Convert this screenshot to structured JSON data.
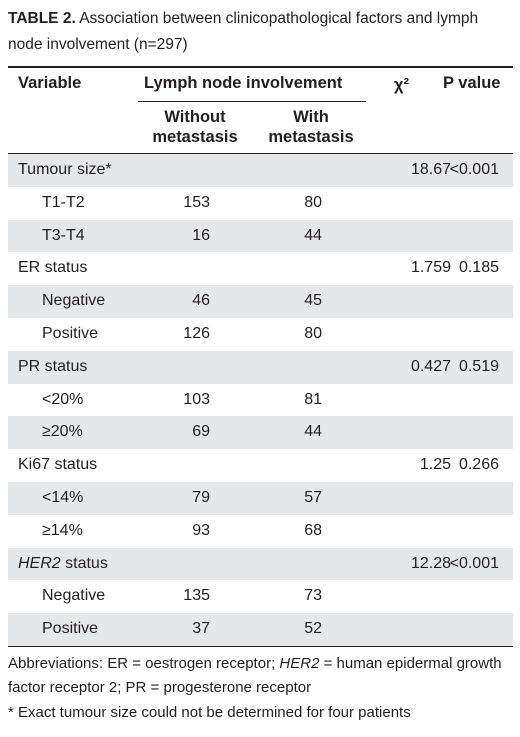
{
  "table_number": "TABLE 2.",
  "title": "Association between clinicopathological factors and lymph node involvement (n=297)",
  "header": {
    "variable": "Variable",
    "group": "Lymph node involvement",
    "without": "Without metastasis",
    "with": "With metastasis",
    "chi2": "χ²",
    "p": "P value"
  },
  "groups": [
    {
      "label": "Tumour size*",
      "chi2": 18.67,
      "p": "<0.001",
      "items": [
        {
          "label": "T1-T2",
          "without": 153,
          "with": 80
        },
        {
          "label": "T3-T4",
          "without": 16,
          "with": 44
        }
      ]
    },
    {
      "label": "ER status",
      "chi2": 1.759,
      "p": 0.185,
      "items": [
        {
          "label": "Negative",
          "without": 46,
          "with": 45
        },
        {
          "label": "Positive",
          "without": 126,
          "with": 80
        }
      ]
    },
    {
      "label": "PR status",
      "chi2": 0.427,
      "p": 0.519,
      "items": [
        {
          "label": "<20%",
          "without": 103,
          "with": 81
        },
        {
          "label": "≥20%",
          "without": 69,
          "with": 44
        }
      ]
    },
    {
      "label": "Ki67 status",
      "chi2": 1.25,
      "p": 0.266,
      "items": [
        {
          "label": "<14%",
          "without": 79,
          "with": 57
        },
        {
          "label": "≥14%",
          "without": 93,
          "with": 68
        }
      ]
    },
    {
      "label_italic": "HER2",
      "label": " status",
      "chi2": 12.28,
      "p": "<0.001",
      "items": [
        {
          "label": "Negative",
          "without": 135,
          "with": 73
        },
        {
          "label": "Positive",
          "without": 37,
          "with": 52
        }
      ]
    }
  ],
  "footnotes": {
    "abbrev_start": "Abbreviations: ER = oestrogen receptor; ",
    "abbrev_italic": "HER2",
    "abbrev_end": " = human epidermal growth factor receptor 2; PR = progesterone receptor",
    "note": "*  Exact tumour size could not be determined for four patients"
  }
}
